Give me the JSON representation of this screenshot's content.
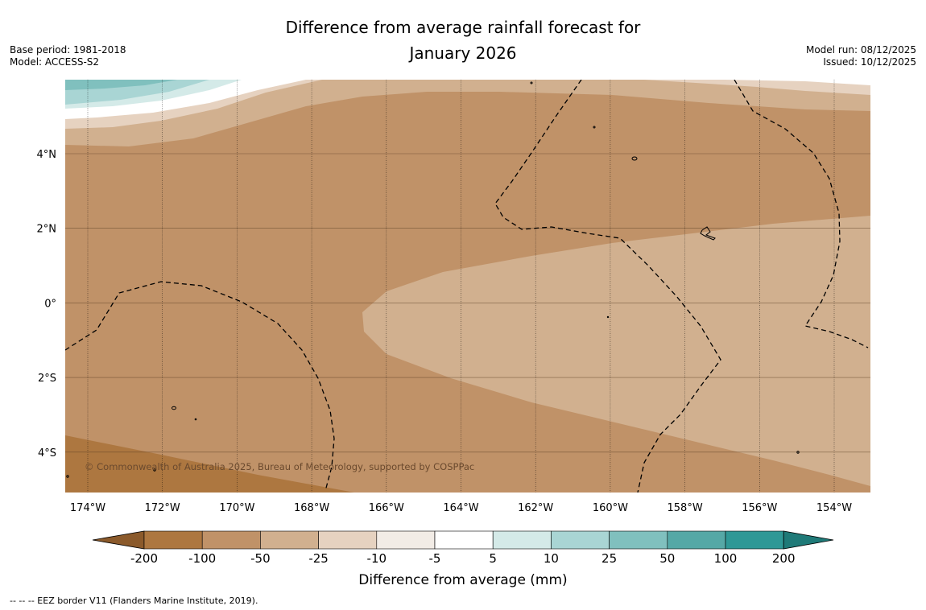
{
  "title": {
    "line1": "Difference from average rainfall forecast for",
    "line2": "January 2026"
  },
  "meta_left": {
    "base_period": "Base period: 1981-2018",
    "model": "Model: ACCESS-S2"
  },
  "meta_right": {
    "model_run": "Model run: 08/12/2025",
    "issued": "Issued: 10/12/2025"
  },
  "map": {
    "lon_labels": [
      "174°W",
      "172°W",
      "170°W",
      "168°W",
      "166°W",
      "164°W",
      "162°W",
      "160°W",
      "158°W",
      "156°W",
      "154°W"
    ],
    "lat_labels": [
      "4°N",
      "2°N",
      "0°",
      "2°S",
      "4°S"
    ],
    "copyright": "© Commonwealth of Australia 2025, Bureau of Meteorology, supported by COSPPac"
  },
  "colorbar": {
    "title": "Difference from average (mm)",
    "tick_labels": [
      "-200",
      "-100",
      "-50",
      "-25",
      "-10",
      "-5",
      "5",
      "10",
      "25",
      "50",
      "100",
      "200"
    ],
    "colors": [
      "#8b5a2b",
      "#ad7740",
      "#c09268",
      "#d1b08f",
      "#e6d2c0",
      "#f2ece6",
      "#ffffff",
      "#d4eae8",
      "#a9d5d4",
      "#80c0be",
      "#55a8a6",
      "#2f9896",
      "#1f7a78"
    ]
  },
  "footnote": "--  --  -- EEZ border V11 (Flanders Marine Institute, 2019)."
}
